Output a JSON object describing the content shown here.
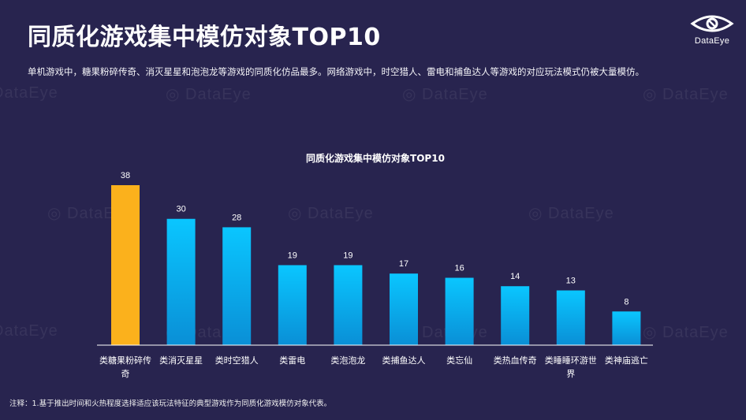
{
  "page": {
    "title": "同质化游戏集中模仿对象TOP10",
    "subtitle": "单机游戏中，糖果粉碎传奇、消灭星星和泡泡龙等游戏的同质化仿品最多。网络游戏中，时空猎人、雷电和捕鱼达人等游戏的对应玩法模式仍被大量模仿。",
    "footnote": "注释：1.基于推出时间和火热程度选择适应该玩法特征的典型游戏作为同质化游戏模仿对象代表。",
    "logo_text": "DataEye",
    "watermark_text": "DataEye"
  },
  "colors": {
    "background": "#28244f",
    "highlight_bar": "#fbb11c",
    "bar_top": "#0ac6ff",
    "bar_bottom": "#0a8fd6"
  },
  "chart_data": {
    "type": "bar",
    "title": "同质化游戏集中模仿对象TOP10",
    "categories": [
      "类糖果粉碎传奇",
      "类消灭星星",
      "类时空猎人",
      "类雷电",
      "类泡泡龙",
      "类捕鱼达人",
      "类忘仙",
      "类热血传奇",
      "类睡睡环游世界",
      "类神庙逃亡"
    ],
    "values": [
      38,
      30,
      28,
      19,
      19,
      17,
      16,
      14,
      13,
      8
    ],
    "highlight_index": 0,
    "ylim": [
      0,
      40
    ],
    "grid": false,
    "legend": "none"
  }
}
